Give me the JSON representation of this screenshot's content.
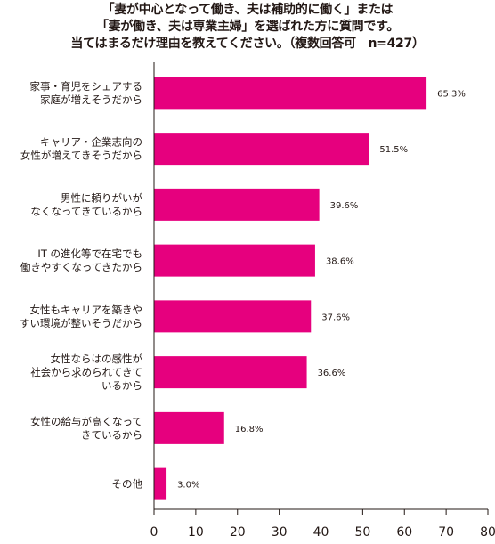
{
  "chart_data": {
    "type": "bar",
    "orientation": "horizontal",
    "title_lines": [
      "「妻が中心となって働き、夫は補助的に働く」または",
      "「妻が働き、夫は専業主婦」を選ばれた方に質問です。",
      "当てはまるだけ理由を教えてください。（複数回答可　n=427）"
    ],
    "categories": [
      [
        "家事・育児をシェアする",
        "家庭が増えそうだから"
      ],
      [
        "キャリア・企業志向の",
        "女性が増えてきそうだから"
      ],
      [
        "男性に頼りがいが",
        "なくなってきているから"
      ],
      [
        "IT の進化等で在宅でも",
        "働きやすくなってきたから"
      ],
      [
        "女性もキャリアを築きや",
        "すい環境が整いそうだから"
      ],
      [
        "女性ならはの感性が",
        "社会から求められてきて",
        "いるから"
      ],
      [
        "女性の給与が高くなって",
        "きているから"
      ],
      [
        "その他"
      ]
    ],
    "values": [
      65.3,
      51.5,
      39.6,
      38.6,
      37.6,
      36.6,
      16.8,
      3.0
    ],
    "value_labels": [
      "65.3%",
      "51.5%",
      "39.6%",
      "38.6%",
      "37.6%",
      "36.6%",
      "16.8%",
      "3.0%"
    ],
    "xlim": [
      0,
      80
    ],
    "xticks": [
      "0",
      "10",
      "20",
      "30",
      "40",
      "50",
      "60",
      "70",
      "80"
    ],
    "grid": false,
    "legend": "none",
    "bar_color": "#e6007e"
  }
}
